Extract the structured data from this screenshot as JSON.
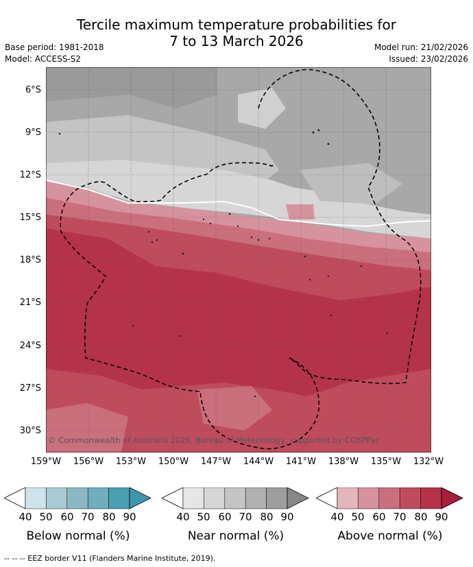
{
  "title_line1": "Tercile maximum temperature probabilities for",
  "title_line2": "7 to 13 March 2026",
  "base_period": "Base period: 1981-2018",
  "model": "Model: ACCESS-S2",
  "model_run": "Model run: 21/02/2026",
  "issued": "Issued: 23/02/2026",
  "lat_ticks": [
    "6°S",
    "9°S",
    "12°S",
    "15°S",
    "18°S",
    "21°S",
    "24°S",
    "27°S",
    "30°S"
  ],
  "lon_ticks": [
    "159°W",
    "156°W",
    "153°W",
    "150°W",
    "147°W",
    "144°W",
    "141°W",
    "138°W",
    "135°W",
    "132°W"
  ],
  "copyright": "© Commonwealth of Australia 2026, Bureau of Meteorology, supported by COSPPac",
  "colorbars": [
    {
      "label": "Below normal (%)",
      "ticks": [
        "40",
        "50",
        "60",
        "70",
        "80",
        "90"
      ],
      "colors": [
        "#cfe3ea",
        "#a9cbd3",
        "#8ab9c5",
        "#6eaebd",
        "#4a9fb1"
      ]
    },
    {
      "label": "Near normal (%)",
      "ticks": [
        "40",
        "50",
        "60",
        "70",
        "80",
        "90"
      ],
      "colors": [
        "#e6e6e6",
        "#d6d6d6",
        "#c4c4c4",
        "#b1b1b1",
        "#9e9e9e"
      ]
    },
    {
      "label": "Above normal (%)",
      "ticks": [
        "40",
        "50",
        "60",
        "70",
        "80",
        "90"
      ],
      "colors": [
        "#e3b6bd",
        "#d7939d",
        "#ca6f7c",
        "#bf4c5d",
        "#b5334a"
      ]
    }
  ],
  "footer": "--  --  -- EEZ border V11 (Flanders Marine Institute, 2019)."
}
